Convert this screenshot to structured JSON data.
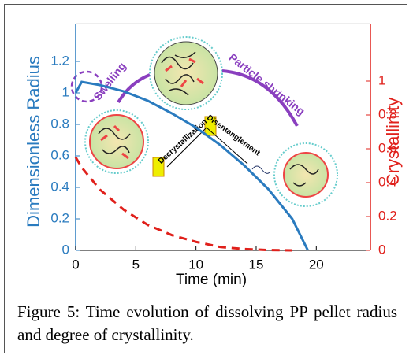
{
  "chart_data": {
    "type": "line",
    "xlabel": "Time (min)",
    "ylabel": "Dimensionless Radius",
    "y2label": "Crystallinity",
    "x": [
      0,
      0.5,
      2,
      4,
      6,
      8,
      10,
      12,
      14,
      16,
      18,
      19.3
    ],
    "xlim": [
      0,
      24.5
    ],
    "xticks": [
      0,
      5,
      10,
      15,
      20
    ],
    "ylim": [
      0,
      1.39
    ],
    "yticks": [
      0,
      0.2,
      0.4,
      0.6,
      0.8,
      1,
      1.2
    ],
    "y2lim": [
      0,
      1.293
    ],
    "y2ticks": [
      0,
      0.2,
      0.4,
      0.6,
      0.8,
      1
    ],
    "series": [
      {
        "color": "#2a7bbf",
        "dashed": false,
        "axis": "y",
        "values": [
          1.0,
          1.07,
          1.05,
          1.01,
          0.95,
          0.87,
          0.78,
          0.67,
          0.54,
          0.39,
          0.2,
          0
        ]
      },
      {
        "color": "#e0201b",
        "dashed": true,
        "axis": "y2",
        "values": [
          0.55,
          0.49,
          0.36,
          0.24,
          0.15,
          0.09,
          0.05,
          0.02,
          0.008,
          0.002,
          0,
          null
        ]
      }
    ],
    "annotations": [
      "Swelling",
      "Particle shrinking",
      "Decrystallization",
      "Disentanglement"
    ]
  },
  "caption": "Figure 5: Time evolution of dissolving PP pellet radius and degree of crystallinity."
}
